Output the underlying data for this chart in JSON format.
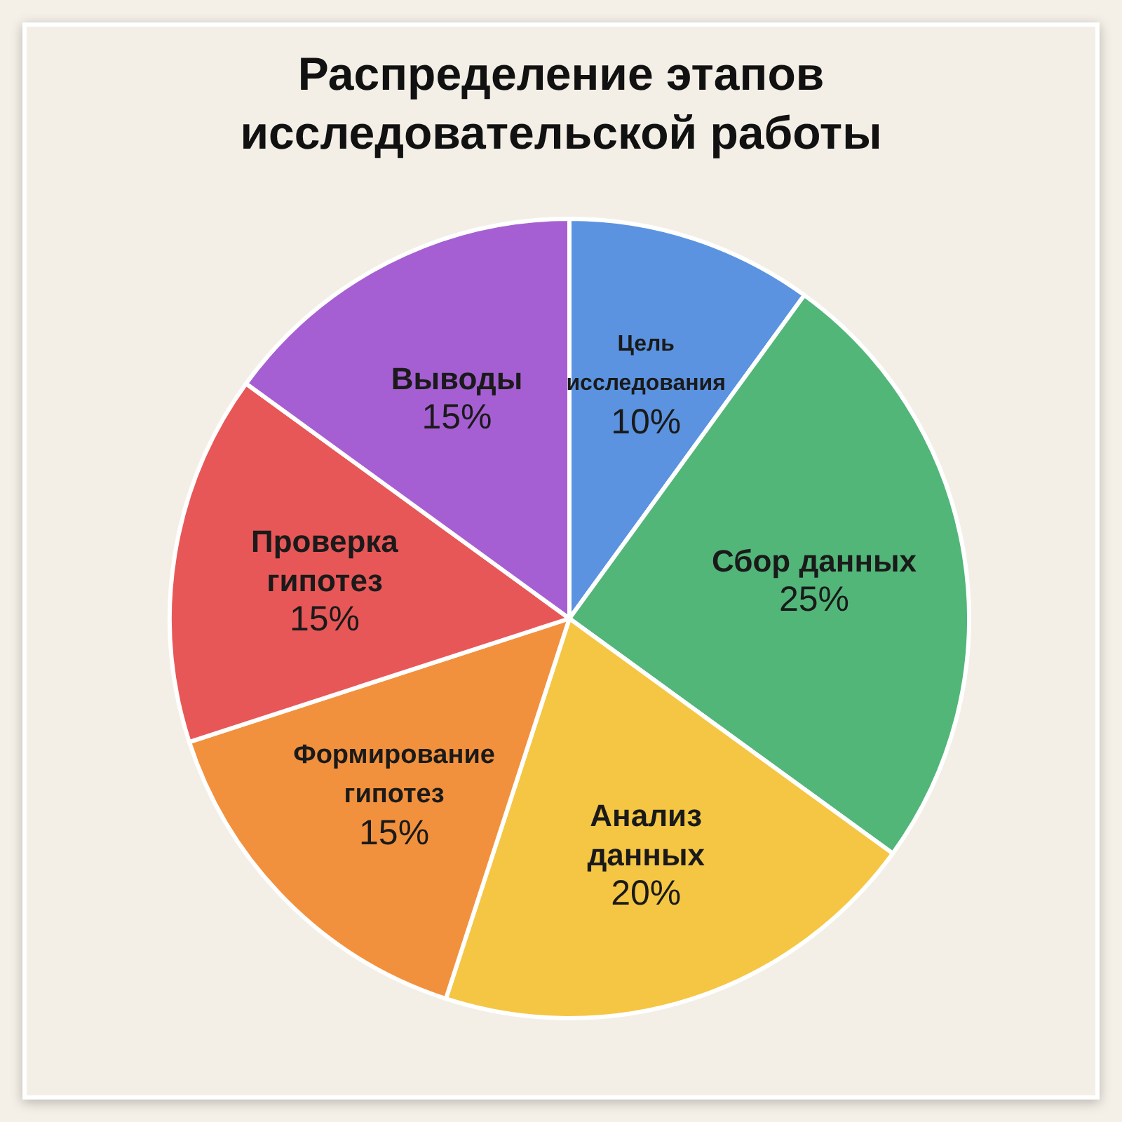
{
  "chart_data": {
    "type": "pie",
    "title": "Распределение этапов исследовательской работы",
    "categories": [
      "Цель\nисследования",
      "Сбор данных",
      "Анализ\nданных",
      "Формирование\nгипотез",
      "Проверка\nгипотез",
      "Выводы"
    ],
    "values": [
      10,
      25,
      20,
      15,
      15,
      15
    ],
    "value_labels": [
      "10%",
      "25%",
      "20%",
      "15%",
      "15%",
      "15%"
    ],
    "colors": [
      "#5b93e0",
      "#52b679",
      "#f5c644",
      "#f2913d",
      "#e85757",
      "#a65fd3"
    ],
    "legend": false
  }
}
